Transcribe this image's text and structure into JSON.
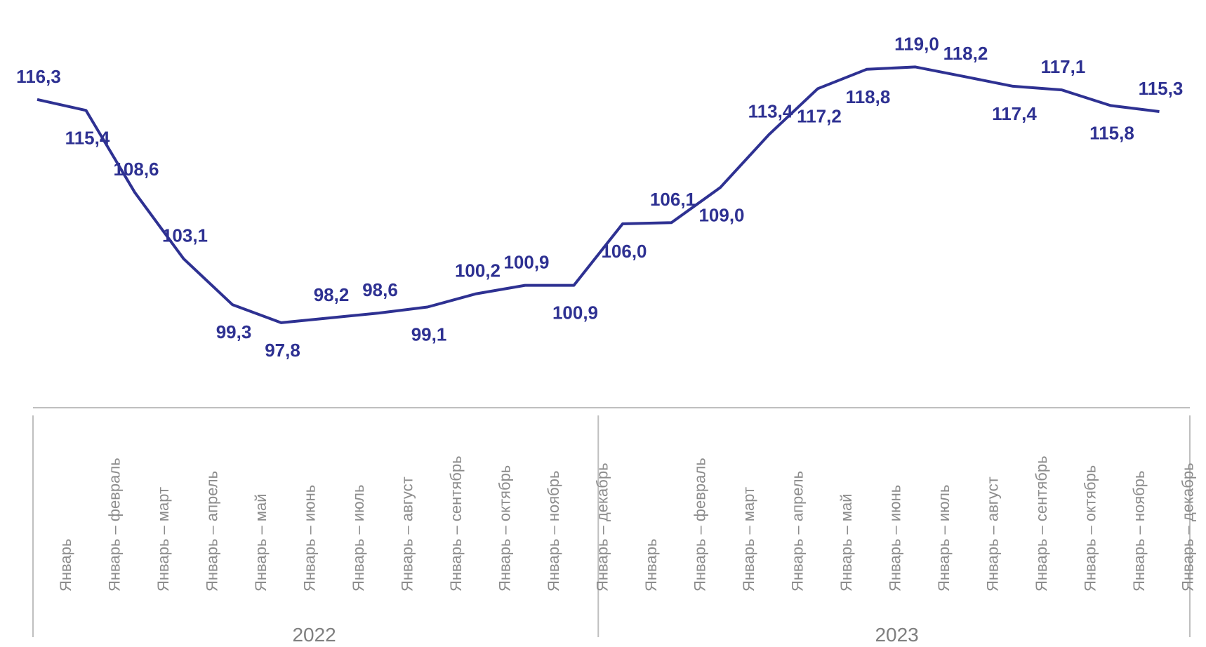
{
  "chart_data": {
    "type": "line",
    "title": "",
    "xlabel": "",
    "ylabel": "",
    "ylim": [
      95,
      121
    ],
    "grid": false,
    "legend": "none",
    "line_color": "#2e3192",
    "groups": [
      {
        "label": "2022",
        "count": 12
      },
      {
        "label": "2023",
        "count": 12
      }
    ],
    "categories": [
      "Январь",
      "Январь – февраль",
      "Январь – март",
      "Январь – апрель",
      "Январь – май",
      "Январь – июнь",
      "Январь – июль",
      "Январь – август",
      "Январь – сентябрь",
      "Январь – октябрь",
      "Январь – ноябрь",
      "Январь – декабрь",
      "Январь",
      "Январь – февраль",
      "Январь – март",
      "Январь – апрель",
      "Январь – май",
      "Январь – июнь",
      "Январь – июль",
      "Январь – август",
      "Январь – сентябрь",
      "Январь – октябрь",
      "Январь – ноябрь",
      "Январь – декабрь"
    ],
    "values": [
      116.3,
      115.4,
      108.6,
      103.1,
      99.3,
      97.8,
      98.2,
      98.6,
      99.1,
      100.2,
      100.9,
      100.9,
      106.0,
      106.1,
      109.0,
      113.4,
      117.2,
      118.8,
      119.0,
      118.2,
      117.4,
      117.1,
      115.8,
      115.3
    ],
    "labels": [
      "116,3",
      "115,4",
      "108,6",
      "103,1",
      "99,3",
      "97,8",
      "98,2",
      "98,6",
      "99,1",
      "100,2",
      "100,9",
      "100,9",
      "106,0",
      "106,1",
      "109,0",
      "113,4",
      "117,2",
      "118,8",
      "119,0",
      "118,2",
      "117,4",
      "117,1",
      "115,8",
      "115,3"
    ],
    "label_positions": [
      "above",
      "below",
      "above",
      "above",
      "below",
      "below",
      "above",
      "above",
      "below",
      "above",
      "above",
      "below",
      "below",
      "above",
      "below",
      "above",
      "below",
      "below",
      "above",
      "above",
      "below",
      "above",
      "below",
      "above"
    ]
  }
}
